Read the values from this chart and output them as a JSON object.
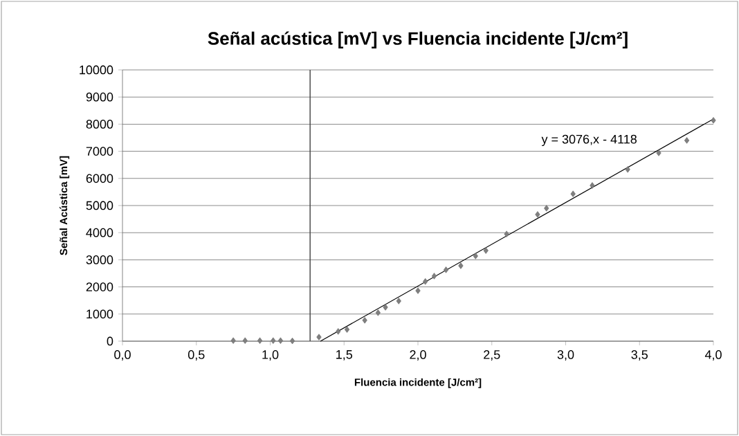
{
  "chart_data": {
    "type": "scatter",
    "title": "Señal acústica [mV] vs Fluencia incidente [J/cm²]",
    "xlabel": "Fluencia incidente [J/cm²]",
    "ylabel": "Señal Acústica [mV]",
    "xlim": [
      0,
      4
    ],
    "ylim": [
      0,
      10000
    ],
    "xticks": [
      {
        "value": 0,
        "label": "0,0"
      },
      {
        "value": 0.5,
        "label": "0,5"
      },
      {
        "value": 1,
        "label": "1,0"
      },
      {
        "value": 1.5,
        "label": "1,5"
      },
      {
        "value": 2,
        "label": "2,0"
      },
      {
        "value": 2.5,
        "label": "2,5"
      },
      {
        "value": 3,
        "label": "3,0"
      },
      {
        "value": 3.5,
        "label": "3,5"
      },
      {
        "value": 4,
        "label": "4,0"
      }
    ],
    "yticks": [
      0,
      1000,
      2000,
      3000,
      4000,
      5000,
      6000,
      7000,
      8000,
      9000,
      10000
    ],
    "grid": "y",
    "series": [
      {
        "marker": "diamond",
        "color": "#7f7f7f",
        "x": [
          0.75,
          0.83,
          0.93,
          1.02,
          1.07,
          1.15,
          1.33,
          1.46,
          1.52,
          1.64,
          1.73,
          1.78,
          1.87,
          2.0,
          2.05,
          2.11,
          2.19,
          2.29,
          2.39,
          2.46,
          2.6,
          2.81,
          2.87,
          3.05,
          3.18,
          3.42,
          3.63,
          3.82,
          4.0
        ],
        "values": [
          20,
          20,
          20,
          20,
          20,
          10,
          150,
          360,
          430,
          770,
          1050,
          1250,
          1480,
          1860,
          2200,
          2400,
          2630,
          2780,
          3140,
          3340,
          3950,
          4670,
          4900,
          5430,
          5740,
          6330,
          6940,
          7400,
          8140
        ]
      },
      {
        "type": "line",
        "marker": "none",
        "line_style": "solid",
        "color": "#000000",
        "x": [
          1.34,
          4.0
        ],
        "values": [
          0,
          8190
        ]
      }
    ],
    "ref_lines": [
      {
        "axis": "x",
        "value": 1.27,
        "color": "#404040"
      }
    ],
    "annotations": [
      "y = 3076,x - 4118"
    ]
  }
}
